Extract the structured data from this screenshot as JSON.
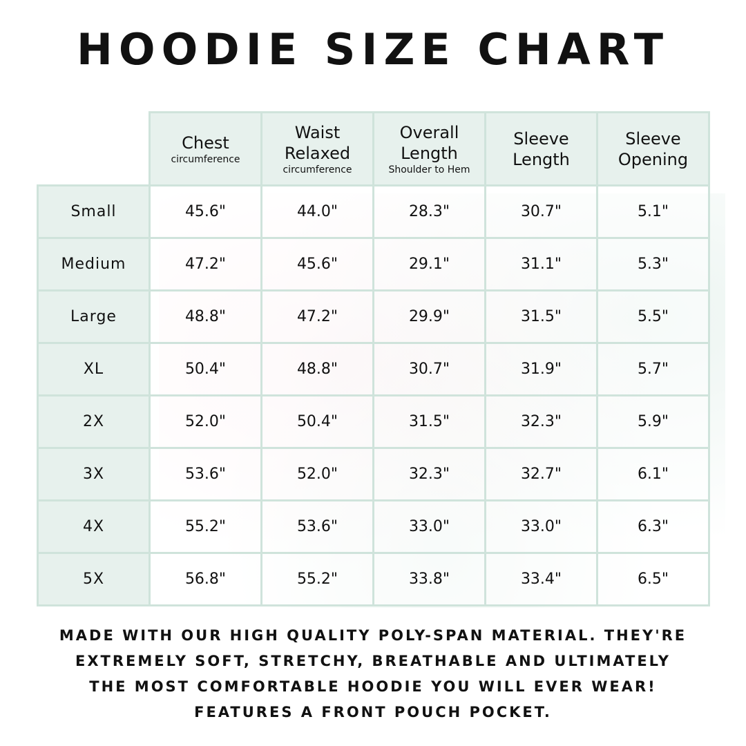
{
  "title": "HOODIE SIZE CHART",
  "columns": [
    {
      "label": "Chest",
      "sub": "circumference"
    },
    {
      "label": "Waist Relaxed",
      "sub": "circumference"
    },
    {
      "label": "Overall Length",
      "sub": "Shoulder to Hem"
    },
    {
      "label": "Sleeve Length",
      "sub": ""
    },
    {
      "label": "Sleeve Opening",
      "sub": ""
    }
  ],
  "rows": [
    {
      "size": "Small",
      "values": [
        "45.6\"",
        "44.0\"",
        "28.3\"",
        "30.7\"",
        "5.1\""
      ]
    },
    {
      "size": "Medium",
      "values": [
        "47.2\"",
        "45.6\"",
        "29.1\"",
        "31.1\"",
        "5.3\""
      ]
    },
    {
      "size": "Large",
      "values": [
        "48.8\"",
        "47.2\"",
        "29.9\"",
        "31.5\"",
        "5.5\""
      ]
    },
    {
      "size": "XL",
      "values": [
        "50.4\"",
        "48.8\"",
        "30.7\"",
        "31.9\"",
        "5.7\""
      ]
    },
    {
      "size": "2X",
      "values": [
        "52.0\"",
        "50.4\"",
        "31.5\"",
        "32.3\"",
        "5.9\""
      ]
    },
    {
      "size": "3X",
      "values": [
        "53.6\"",
        "52.0\"",
        "32.3\"",
        "32.7\"",
        "6.1\""
      ]
    },
    {
      "size": "4X",
      "values": [
        "55.2\"",
        "53.6\"",
        "33.0\"",
        "33.0\"",
        "6.3\""
      ]
    },
    {
      "size": "5X",
      "values": [
        "56.8\"",
        "55.2\"",
        "33.8\"",
        "33.4\"",
        "6.5\""
      ]
    }
  ],
  "footer": [
    "Made with our high quality poly-span material. They're",
    "extremely soft, stretchy, breathable and ultimately",
    "the most comfortable hoodie you will ever wear!",
    "Features a front pouch pocket."
  ],
  "colors": {
    "header_bg": "#e7f1ed",
    "border": "#cfe3db"
  }
}
